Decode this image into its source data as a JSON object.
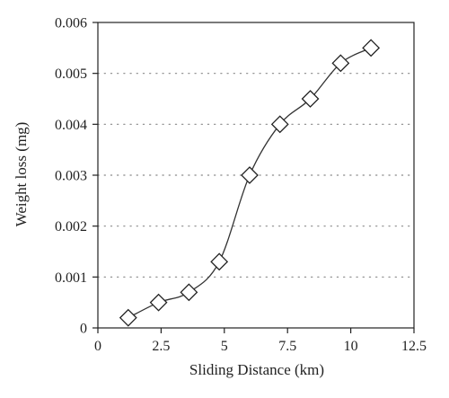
{
  "chart_data": {
    "type": "line",
    "title": "",
    "xlabel": "Sliding Distance (km)",
    "ylabel": "Weight loss (mg)",
    "xlim": [
      0,
      12.5
    ],
    "ylim": [
      0,
      0.006
    ],
    "x_ticks": [
      "0",
      "2.5",
      "5",
      "7.5",
      "10",
      "12.5"
    ],
    "y_ticks": [
      "0",
      "0.001",
      "0.002",
      "0.003",
      "0.004",
      "0.005",
      "0.006"
    ],
    "grid": "horizontal dotted",
    "legend": "none",
    "marker": "diamond",
    "colors": {
      "line": "#333333",
      "marker_stroke": "#222222",
      "marker_fill": "#ffffff",
      "grid": "#888888",
      "axis": "#222222"
    },
    "series": [
      {
        "x": [
          1.2,
          2.4,
          3.6,
          4.8,
          6.0,
          7.2,
          8.4,
          9.6,
          10.8
        ],
        "y": [
          0.0002,
          0.0005,
          0.0007,
          0.0013,
          0.003,
          0.004,
          0.0045,
          0.0052,
          0.0055
        ]
      }
    ]
  }
}
